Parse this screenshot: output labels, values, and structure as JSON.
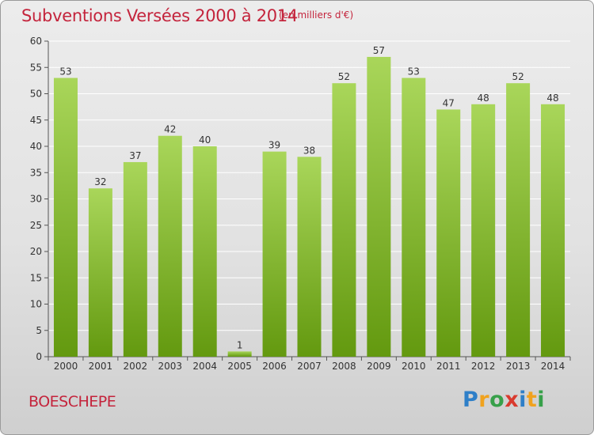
{
  "title": "Subventions Versées 2000 à 2014",
  "subtitle": "(en milliers d'€)",
  "commune": "BOESCHEPE",
  "logo": {
    "letters": [
      "P",
      "r",
      "o",
      "x",
      "i",
      "t",
      "i"
    ],
    "colors": [
      "#2e7fc8",
      "#f0a21e",
      "#38a04a",
      "#d93a2e",
      "#2e7fc8",
      "#f0a21e",
      "#38a04a"
    ]
  },
  "colors": {
    "bar_light": "#a9d65a",
    "bar_dark": "#63990f",
    "text_red": "#c4243c",
    "grid": "#ffffff"
  },
  "chart_data": {
    "type": "bar",
    "categories": [
      "2000",
      "2001",
      "2002",
      "2003",
      "2004",
      "2005",
      "2006",
      "2007",
      "2008",
      "2009",
      "2010",
      "2011",
      "2012",
      "2013",
      "2014"
    ],
    "values": [
      53,
      32,
      37,
      42,
      40,
      1,
      39,
      38,
      52,
      57,
      53,
      47,
      48,
      52,
      48
    ],
    "value_labels": [
      "53",
      "32",
      "37",
      "42",
      "40",
      "1",
      "39",
      "38",
      "52",
      "57",
      "53",
      "47",
      "48",
      "52",
      "48"
    ],
    "yticks": [
      "0",
      "5",
      "10",
      "15",
      "20",
      "25",
      "30",
      "35",
      "40",
      "45",
      "50",
      "55",
      "60"
    ],
    "ylim": [
      0,
      60
    ],
    "grid": true,
    "legend": "none",
    "title": "Subventions Versées 2000 à 2014",
    "xlabel": "",
    "ylabel": ""
  }
}
